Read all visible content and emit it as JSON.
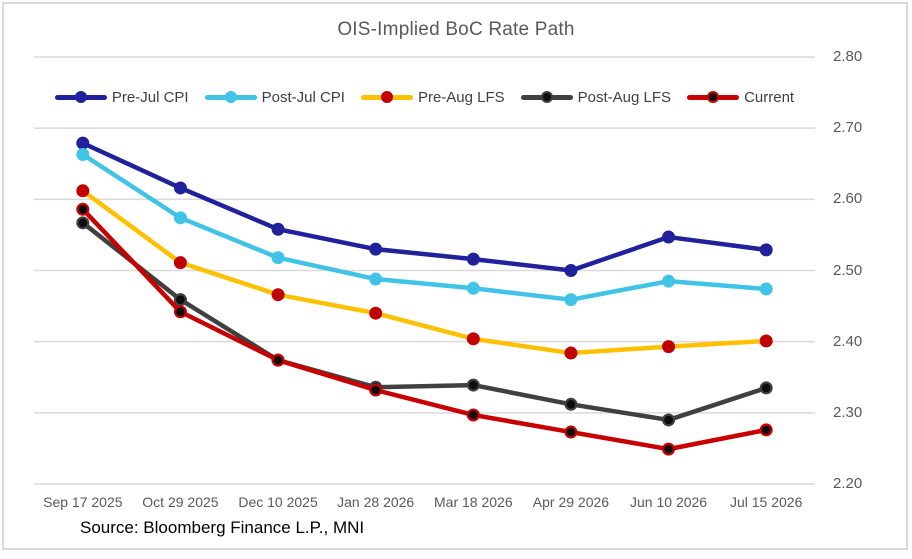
{
  "chart": {
    "title": "OIS-Implied BoC Rate Path",
    "source": "Source: Bloomberg Finance L.P., MNI"
  },
  "colors": {
    "grid": "#D9D9D9",
    "frame_border": "#D9D9D9",
    "title_text": "#595959",
    "axis_text": "#595959",
    "legend_text": "#404040",
    "source_text": "#000000"
  },
  "chart_data": {
    "type": "line",
    "title": "OIS-Implied BoC Rate Path",
    "xlabel": "",
    "ylabel": "",
    "grid": "horizontal",
    "legend_position": "top-center",
    "ylim": [
      2.2,
      2.8
    ],
    "yticks": [
      "2.80",
      "2.70",
      "2.60",
      "2.50",
      "2.40",
      "2.30",
      "2.20"
    ],
    "categories": [
      "Sep 17 2025",
      "Oct 29 2025",
      "Dec 10 2025",
      "Jan 28 2026",
      "Mar 18 2026",
      "Apr 29 2026",
      "Jun 10 2026",
      "Jul 15 2026"
    ],
    "series": [
      {
        "name": "Pre-Jul CPI",
        "line_color": "#21229B",
        "marker_color": "#21229B",
        "marker_border": "#21229B",
        "values": [
          2.679,
          2.616,
          2.558,
          2.53,
          2.516,
          2.5,
          2.547,
          2.529
        ]
      },
      {
        "name": "Post-Jul CPI",
        "line_color": "#40C3E6",
        "marker_color": "#40C3E6",
        "marker_border": "#40C3E6",
        "values": [
          2.663,
          2.574,
          2.518,
          2.488,
          2.475,
          2.459,
          2.485,
          2.474
        ]
      },
      {
        "name": "Pre-Aug LFS",
        "line_color": "#FFC000",
        "marker_color": "#C00000",
        "marker_border": "#C00000",
        "values": [
          2.612,
          2.511,
          2.466,
          2.44,
          2.404,
          2.384,
          2.393,
          2.401
        ]
      },
      {
        "name": "Post-Aug LFS",
        "line_color": "#404040",
        "marker_color": "#0D0D0D",
        "marker_border": "#404040",
        "values": [
          2.567,
          2.459,
          2.374,
          2.336,
          2.339,
          2.312,
          2.29,
          2.335
        ]
      },
      {
        "name": "Current",
        "line_color": "#C80000",
        "marker_color": "#0D0D0D",
        "marker_border": "#C80000",
        "values": [
          2.586,
          2.442,
          2.374,
          2.332,
          2.297,
          2.273,
          2.249,
          2.276
        ]
      }
    ]
  }
}
